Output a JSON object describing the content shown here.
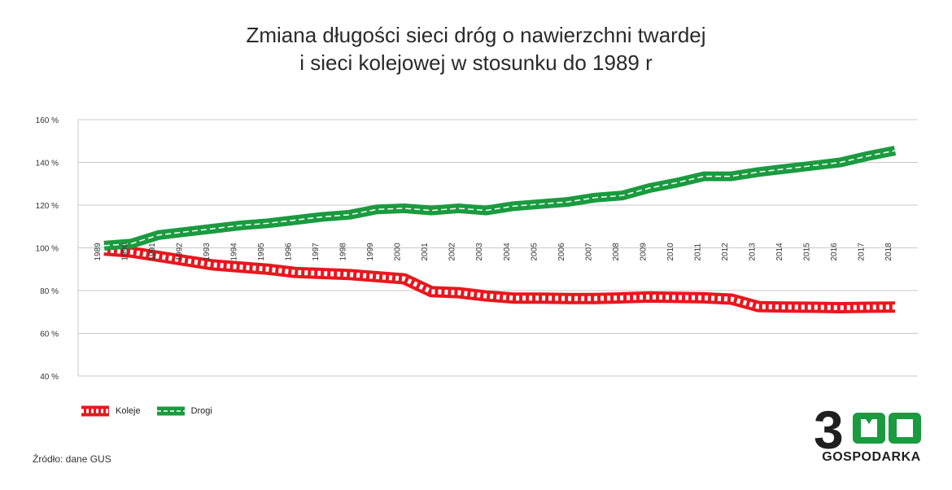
{
  "chart_data": {
    "type": "line",
    "title_lines": [
      "Zmiana długości sieci dróg o nawierzchni twardej",
      "i sieci kolejowej w stosunku do 1989 r"
    ],
    "x": [
      "1989",
      "1990",
      "1991",
      "1992",
      "1993",
      "1994",
      "1995",
      "1996",
      "1997",
      "1998",
      "1999",
      "2000",
      "2001",
      "2002",
      "2003",
      "2004",
      "2005",
      "2006",
      "2007",
      "2008",
      "2009",
      "2010",
      "2011",
      "2012",
      "2013",
      "2014",
      "2015",
      "2016",
      "2017",
      "2018"
    ],
    "y_ticks": [
      "160 %",
      "140 %",
      "120 %",
      "100 %",
      "80 %",
      "60 %",
      "40 %"
    ],
    "ylim": [
      40,
      160
    ],
    "grid": true,
    "legend_position": "bottom-left",
    "series": [
      {
        "name": "Koleje",
        "color": "#e8171e",
        "style": "rail",
        "values": [
          99,
          98,
          96,
          94,
          92,
          91,
          90,
          88.5,
          88,
          87.5,
          86.5,
          85.5,
          79.5,
          79,
          77.5,
          76.5,
          76.5,
          76.3,
          76.3,
          76.6,
          77,
          76.8,
          76.6,
          76,
          72.5,
          72.3,
          72.2,
          72,
          72.2,
          72.3
        ]
      },
      {
        "name": "Drogi",
        "color": "#1a9b3f",
        "style": "road",
        "values": [
          101,
          102,
          106,
          107.5,
          109,
          110.5,
          111.5,
          113,
          114.5,
          115.5,
          118,
          118.5,
          117.5,
          118.5,
          117.5,
          119.5,
          120.5,
          121.5,
          123.5,
          124.5,
          128,
          130.5,
          133.5,
          133.5,
          135.5,
          137,
          138.5,
          140,
          143,
          145.5
        ]
      }
    ]
  },
  "source_text": "Źródło: dane GUS",
  "logo": {
    "digits": "3",
    "word": "GOSPODARKA",
    "accent_color": "#1a9b3f"
  }
}
